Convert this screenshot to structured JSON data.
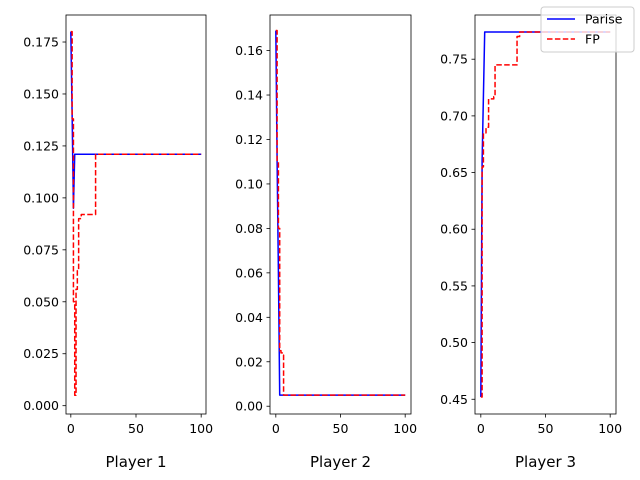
{
  "chart_data": [
    {
      "type": "line",
      "xlabel": "Player 1",
      "xlim": [
        -3.7,
        103.7
      ],
      "ylim": [
        -0.004,
        0.188
      ],
      "xticks": [
        0,
        50,
        100
      ],
      "yticks": [
        0.0,
        0.025,
        0.05,
        0.075,
        0.1,
        0.125,
        0.15,
        0.175
      ],
      "ytick_labels": [
        "0.000",
        "0.025",
        "0.050",
        "0.075",
        "0.100",
        "0.125",
        "0.150",
        "0.175"
      ],
      "series": [
        {
          "name": "Parise",
          "color": "#0000ff",
          "style": "solid",
          "x": [
            0,
            1,
            2,
            3,
            4,
            100
          ],
          "y": [
            0.18,
            0.14,
            0.095,
            0.121,
            0.121,
            0.121
          ]
        },
        {
          "name": "FP",
          "color": "#ff0000",
          "style": "dashed",
          "x": [
            0,
            1,
            1,
            2,
            2,
            3,
            3,
            4,
            4,
            5,
            5,
            6,
            6,
            8,
            8,
            19,
            19,
            100
          ],
          "y": [
            0.18,
            0.18,
            0.138,
            0.138,
            0.05,
            0.05,
            0.005,
            0.005,
            0.056,
            0.056,
            0.065,
            0.065,
            0.09,
            0.09,
            0.092,
            0.092,
            0.121,
            0.121
          ]
        }
      ]
    },
    {
      "type": "line",
      "xlabel": "Player 2",
      "xlim": [
        -4.5,
        104.5
      ],
      "ylim": [
        -0.0035,
        0.176
      ],
      "xticks": [
        0,
        50,
        100
      ],
      "yticks": [
        0.0,
        0.02,
        0.04,
        0.06,
        0.08,
        0.1,
        0.12,
        0.14,
        0.16
      ],
      "ytick_labels": [
        "0.00",
        "0.02",
        "0.04",
        "0.06",
        "0.08",
        "0.10",
        "0.12",
        "0.14",
        "0.16"
      ],
      "series": [
        {
          "name": "Parise",
          "color": "#0000ff",
          "style": "solid",
          "x": [
            0,
            1,
            2,
            3,
            100
          ],
          "y": [
            0.169,
            0.11,
            0.06,
            0.005,
            0.005
          ]
        },
        {
          "name": "FP",
          "color": "#ff0000",
          "style": "dashed",
          "x": [
            0,
            1,
            1,
            2,
            2,
            3,
            3,
            4,
            4,
            5,
            5,
            6,
            6,
            100
          ],
          "y": [
            0.169,
            0.169,
            0.11,
            0.11,
            0.08,
            0.08,
            0.025,
            0.025,
            0.024,
            0.024,
            0.023,
            0.023,
            0.005,
            0.005
          ]
        }
      ]
    },
    {
      "type": "line",
      "xlabel": "Player 3",
      "xlim": [
        -4.5,
        104.5
      ],
      "ylim": [
        0.437,
        0.789
      ],
      "xticks": [
        0,
        50,
        100
      ],
      "yticks": [
        0.45,
        0.5,
        0.55,
        0.6,
        0.65,
        0.7,
        0.75
      ],
      "ytick_labels": [
        "0.45",
        "0.50",
        "0.55",
        "0.60",
        "0.65",
        "0.70",
        "0.75"
      ],
      "series": [
        {
          "name": "Parise",
          "color": "#0000ff",
          "style": "solid",
          "x": [
            0,
            1,
            3,
            100
          ],
          "y": [
            0.452,
            0.66,
            0.774,
            0.774
          ]
        },
        {
          "name": "FP",
          "color": "#ff0000",
          "style": "dashed",
          "x": [
            0,
            1,
            1,
            2,
            2,
            4,
            4,
            6,
            6,
            10,
            10,
            11,
            11,
            28,
            28,
            30,
            30,
            100
          ],
          "y": [
            0.452,
            0.452,
            0.655,
            0.655,
            0.685,
            0.685,
            0.69,
            0.69,
            0.715,
            0.715,
            0.717,
            0.717,
            0.745,
            0.745,
            0.77,
            0.77,
            0.774,
            0.774
          ]
        }
      ]
    }
  ],
  "legend": {
    "placement": "top-right",
    "entries": [
      {
        "label": "Parise",
        "color": "#0000ff",
        "style": "solid"
      },
      {
        "label": "FP",
        "color": "#ff0000",
        "style": "dashed"
      }
    ]
  }
}
